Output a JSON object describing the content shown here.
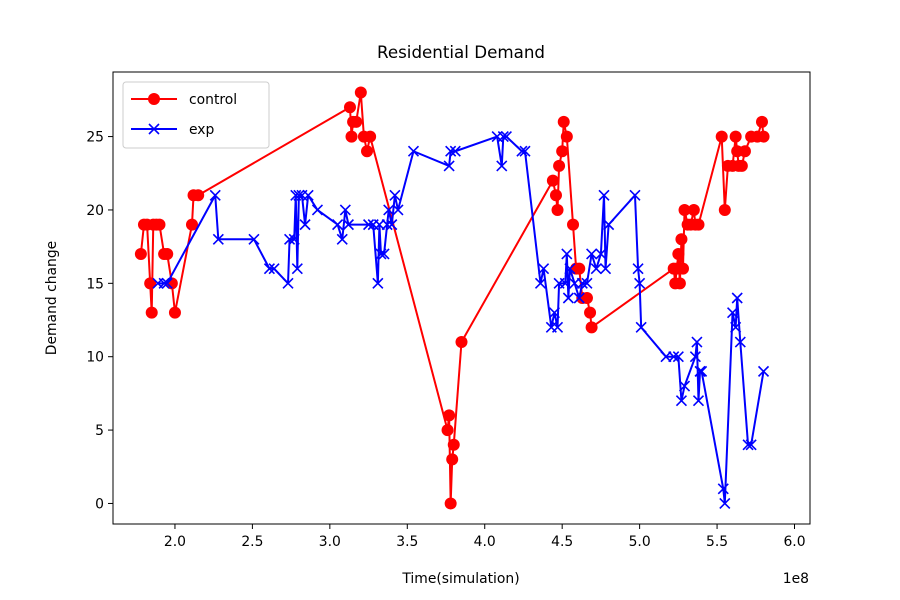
{
  "chart_data": {
    "type": "line",
    "title": "Residential Demand",
    "xlabel": "Time(simulation)",
    "ylabel": "Demand change",
    "x_offset_text": "1e8",
    "xlim": [
      1.6,
      6.1
    ],
    "ylim": [
      -1.4,
      29.4
    ],
    "x_ticks": [
      2.0,
      2.5,
      3.0,
      3.5,
      4.0,
      4.5,
      5.0,
      5.5,
      6.0
    ],
    "x_tick_labels": [
      "2.0",
      "2.5",
      "3.0",
      "3.5",
      "4.0",
      "4.5",
      "5.0",
      "5.5",
      "6.0"
    ],
    "y_ticks": [
      0,
      5,
      10,
      15,
      20,
      25
    ],
    "y_tick_labels": [
      "0",
      "5",
      "10",
      "15",
      "20",
      "25"
    ],
    "grid": false,
    "legend_position": "top-left",
    "series": [
      {
        "name": "control",
        "color": "#ff0000",
        "marker": "circle",
        "points": [
          [
            1.78,
            17
          ],
          [
            1.8,
            19
          ],
          [
            1.82,
            19
          ],
          [
            1.84,
            15
          ],
          [
            1.85,
            13
          ],
          [
            1.86,
            19
          ],
          [
            1.88,
            19
          ],
          [
            1.9,
            19
          ],
          [
            1.93,
            17
          ],
          [
            1.95,
            17
          ],
          [
            1.98,
            15
          ],
          [
            2.0,
            13
          ],
          [
            2.11,
            19
          ],
          [
            2.12,
            21
          ],
          [
            2.15,
            21
          ],
          [
            3.13,
            27
          ],
          [
            3.14,
            25
          ],
          [
            3.15,
            26
          ],
          [
            3.17,
            26
          ],
          [
            3.2,
            28
          ],
          [
            3.22,
            25
          ],
          [
            3.24,
            24
          ],
          [
            3.26,
            25
          ],
          [
            3.76,
            5
          ],
          [
            3.77,
            6
          ],
          [
            3.78,
            0
          ],
          [
            3.79,
            3
          ],
          [
            3.8,
            4
          ],
          [
            3.85,
            11
          ],
          [
            4.44,
            22
          ],
          [
            4.46,
            21
          ],
          [
            4.47,
            20
          ],
          [
            4.48,
            23
          ],
          [
            4.5,
            24
          ],
          [
            4.51,
            26
          ],
          [
            4.53,
            25
          ],
          [
            4.57,
            19
          ],
          [
            4.59,
            16
          ],
          [
            4.61,
            16
          ],
          [
            4.63,
            14
          ],
          [
            4.66,
            14
          ],
          [
            4.68,
            13
          ],
          [
            4.69,
            12
          ],
          [
            5.22,
            16
          ],
          [
            5.23,
            15
          ],
          [
            5.24,
            16
          ],
          [
            5.25,
            17
          ],
          [
            5.26,
            15
          ],
          [
            5.27,
            18
          ],
          [
            5.28,
            16
          ],
          [
            5.29,
            20
          ],
          [
            5.31,
            19
          ],
          [
            5.33,
            19
          ],
          [
            5.35,
            20
          ],
          [
            5.36,
            19
          ],
          [
            5.38,
            19
          ],
          [
            5.53,
            25
          ],
          [
            5.55,
            20
          ],
          [
            5.57,
            23
          ],
          [
            5.6,
            23
          ],
          [
            5.62,
            25
          ],
          [
            5.63,
            24
          ],
          [
            5.64,
            23
          ],
          [
            5.66,
            23
          ],
          [
            5.68,
            24
          ],
          [
            5.72,
            25
          ],
          [
            5.76,
            25
          ],
          [
            5.79,
            26
          ],
          [
            5.8,
            25
          ]
        ]
      },
      {
        "name": "exp",
        "color": "#0000ff",
        "marker": "x",
        "points": [
          [
            1.89,
            15
          ],
          [
            1.93,
            15
          ],
          [
            1.95,
            15
          ],
          [
            2.26,
            21
          ],
          [
            2.28,
            18
          ],
          [
            2.51,
            18
          ],
          [
            2.61,
            16
          ],
          [
            2.64,
            16
          ],
          [
            2.73,
            15
          ],
          [
            2.74,
            18
          ],
          [
            2.77,
            18
          ],
          [
            2.78,
            21
          ],
          [
            2.79,
            16
          ],
          [
            2.8,
            21
          ],
          [
            2.82,
            21
          ],
          [
            2.84,
            19
          ],
          [
            2.86,
            21
          ],
          [
            2.92,
            20
          ],
          [
            3.05,
            19
          ],
          [
            3.08,
            18
          ],
          [
            3.1,
            20
          ],
          [
            3.12,
            19
          ],
          [
            3.25,
            19
          ],
          [
            3.28,
            19
          ],
          [
            3.31,
            15
          ],
          [
            3.32,
            19
          ],
          [
            3.33,
            17
          ],
          [
            3.35,
            17
          ],
          [
            3.37,
            19
          ],
          [
            3.38,
            20
          ],
          [
            3.4,
            19
          ],
          [
            3.42,
            21
          ],
          [
            3.44,
            20
          ],
          [
            3.54,
            24
          ],
          [
            3.77,
            23
          ],
          [
            3.78,
            24
          ],
          [
            3.81,
            24
          ],
          [
            4.08,
            25
          ],
          [
            4.11,
            23
          ],
          [
            4.12,
            25
          ],
          [
            4.14,
            25
          ],
          [
            4.24,
            24
          ],
          [
            4.26,
            24
          ],
          [
            4.36,
            15
          ],
          [
            4.38,
            16
          ],
          [
            4.43,
            12
          ],
          [
            4.45,
            13
          ],
          [
            4.47,
            12
          ],
          [
            4.48,
            15
          ],
          [
            4.52,
            15
          ],
          [
            4.53,
            17
          ],
          [
            4.54,
            14
          ],
          [
            4.55,
            16
          ],
          [
            4.58,
            15
          ],
          [
            4.61,
            14
          ],
          [
            4.63,
            15
          ],
          [
            4.66,
            15
          ],
          [
            4.69,
            17
          ],
          [
            4.72,
            16
          ],
          [
            4.75,
            17
          ],
          [
            4.77,
            21
          ],
          [
            4.78,
            16
          ],
          [
            4.8,
            19
          ],
          [
            4.97,
            21
          ],
          [
            4.99,
            16
          ],
          [
            5.0,
            15
          ],
          [
            5.01,
            12
          ],
          [
            5.17,
            10
          ],
          [
            5.22,
            10
          ],
          [
            5.25,
            10
          ],
          [
            5.27,
            7
          ],
          [
            5.29,
            8
          ],
          [
            5.36,
            10
          ],
          [
            5.37,
            11
          ],
          [
            5.38,
            7
          ],
          [
            5.39,
            9
          ],
          [
            5.4,
            9
          ],
          [
            5.54,
            1
          ],
          [
            5.55,
            0
          ],
          [
            5.6,
            13
          ],
          [
            5.62,
            12
          ],
          [
            5.63,
            14
          ],
          [
            5.65,
            11
          ],
          [
            5.7,
            4
          ],
          [
            5.72,
            4
          ],
          [
            5.8,
            9
          ]
        ]
      }
    ]
  }
}
